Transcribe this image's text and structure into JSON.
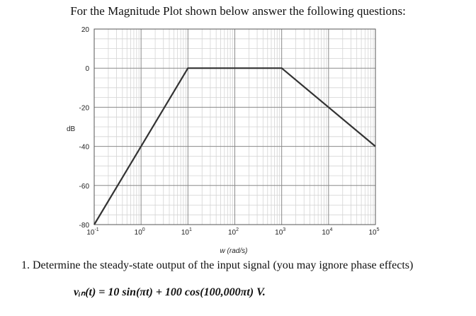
{
  "heading": "For the Magnitude Plot shown below answer the following questions:",
  "question": "1. Determine the steady-state output of the input signal (you may ignore phase effects)",
  "equation": "vᵢₙ(t) = 10 sin(πt) + 100 cos(100,000πt) V.",
  "chart_data": {
    "type": "line",
    "title": "",
    "xlabel": "w (rad/s)",
    "ylabel": "dB",
    "xscale": "log",
    "xlim": [
      0.1,
      100000
    ],
    "ylim": [
      -80,
      20
    ],
    "xticks": [
      {
        "base": "10",
        "exp": "-1"
      },
      {
        "base": "10",
        "exp": "0"
      },
      {
        "base": "10",
        "exp": "1"
      },
      {
        "base": "10",
        "exp": "2"
      },
      {
        "base": "10",
        "exp": "3"
      },
      {
        "base": "10",
        "exp": "4"
      },
      {
        "base": "10",
        "exp": "5"
      }
    ],
    "yticks": [
      "20",
      "0",
      "-20",
      "-40",
      "-60",
      "-80"
    ],
    "grid": true,
    "series": [
      {
        "x": [
          0.1,
          10,
          1000,
          100000
        ],
        "y": [
          -80,
          0,
          0,
          -40
        ],
        "color": "#333333"
      }
    ]
  }
}
